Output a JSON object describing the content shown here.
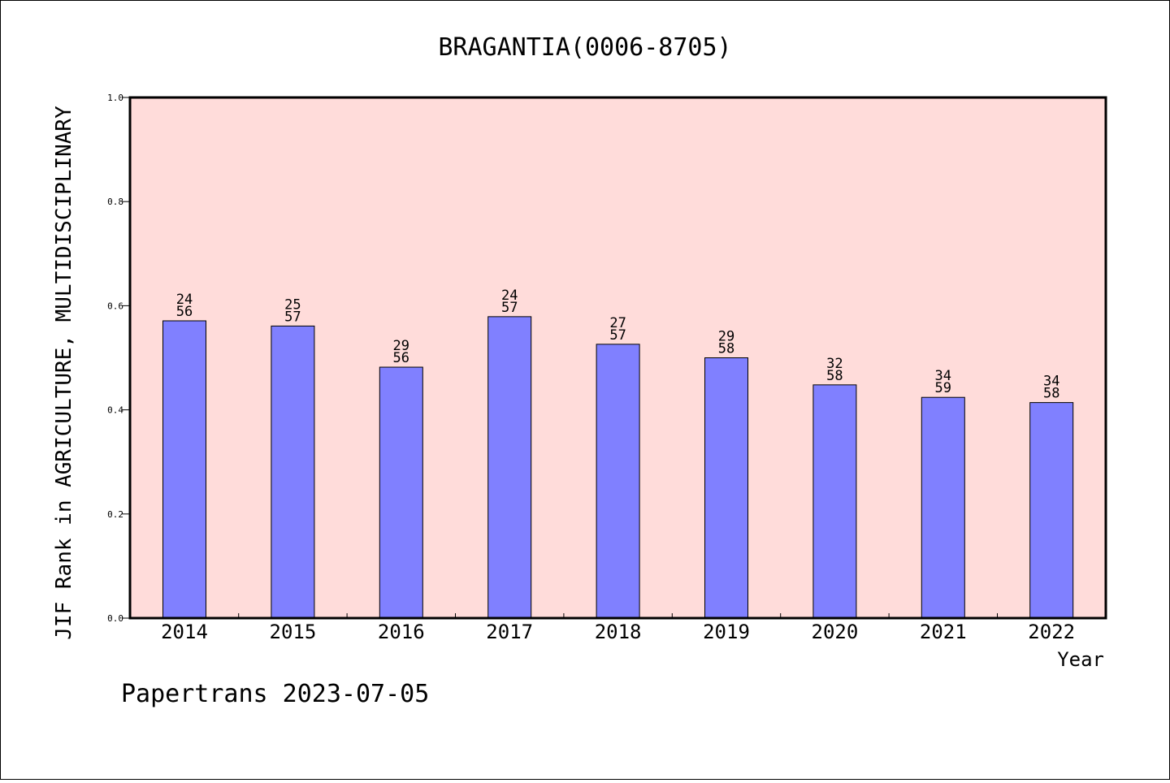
{
  "chart_data": {
    "type": "bar",
    "title": "BRAGANTIA(0006-8705)",
    "xlabel": "Year",
    "ylabel": "JIF Rank in AGRICULTURE, MULTIDISCIPLINARY",
    "ylim": [
      0,
      1.0
    ],
    "yticks": [
      "0.0",
      "0.2",
      "0.4",
      "0.6",
      "0.8",
      "1.0"
    ],
    "categories": [
      "2014",
      "2015",
      "2016",
      "2017",
      "2018",
      "2019",
      "2020",
      "2021",
      "2022"
    ],
    "values": [
      0.571,
      0.561,
      0.482,
      0.579,
      0.526,
      0.5,
      0.448,
      0.424,
      0.414
    ],
    "rank": [
      "24",
      "25",
      "29",
      "24",
      "27",
      "29",
      "32",
      "34",
      "34"
    ],
    "total": [
      "56",
      "57",
      "56",
      "57",
      "57",
      "58",
      "58",
      "59",
      "58"
    ],
    "grid": false,
    "colors": {
      "plot_background": "#ffdcda",
      "bar": "#8080ff",
      "axis": "#000000"
    }
  },
  "footer": {
    "text": "Papertrans 2023-07-05"
  }
}
